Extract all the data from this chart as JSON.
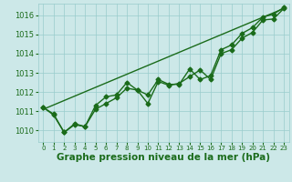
{
  "x": [
    0,
    1,
    2,
    3,
    4,
    5,
    6,
    7,
    8,
    9,
    10,
    11,
    12,
    13,
    14,
    15,
    16,
    17,
    18,
    19,
    20,
    21,
    22,
    23
  ],
  "line1": [
    1011.2,
    1010.8,
    1009.9,
    1010.3,
    1010.2,
    1011.1,
    1011.4,
    1011.7,
    1012.2,
    1012.1,
    1011.4,
    1012.55,
    1012.35,
    1012.45,
    1012.8,
    1013.15,
    1012.65,
    1014.0,
    1014.2,
    1014.8,
    1015.1,
    1015.75,
    1015.8,
    1016.35
  ],
  "line2": [
    1011.2,
    1010.85,
    1009.9,
    1010.35,
    1010.2,
    1011.3,
    1011.75,
    1011.85,
    1012.5,
    1012.1,
    1011.85,
    1012.65,
    1012.4,
    1012.4,
    1013.2,
    1012.65,
    1012.85,
    1014.2,
    1014.45,
    1015.05,
    1015.35,
    1015.9,
    1016.05,
    1016.4
  ],
  "trend_x": [
    0,
    23
  ],
  "trend_y": [
    1011.1,
    1016.35
  ],
  "line_color": "#1a6b1a",
  "bg_color": "#cce8e8",
  "grid_color": "#99cccc",
  "xlabel": "Graphe pression niveau de la mer (hPa)",
  "ylim": [
    1009.4,
    1016.6
  ],
  "xlim": [
    -0.5,
    23.5
  ],
  "yticks": [
    1010,
    1011,
    1012,
    1013,
    1014,
    1015,
    1016
  ],
  "xticks": [
    0,
    1,
    2,
    3,
    4,
    5,
    6,
    7,
    8,
    9,
    10,
    11,
    12,
    13,
    14,
    15,
    16,
    17,
    18,
    19,
    20,
    21,
    22,
    23
  ],
  "marker": "D",
  "markersize": 2.5,
  "linewidth": 1.0,
  "xlabel_fontsize": 7.5,
  "ytick_fontsize": 6.0,
  "xtick_fontsize": 5.0,
  "xlabel_color": "#1a6b1a",
  "tick_color": "#1a6b1a"
}
